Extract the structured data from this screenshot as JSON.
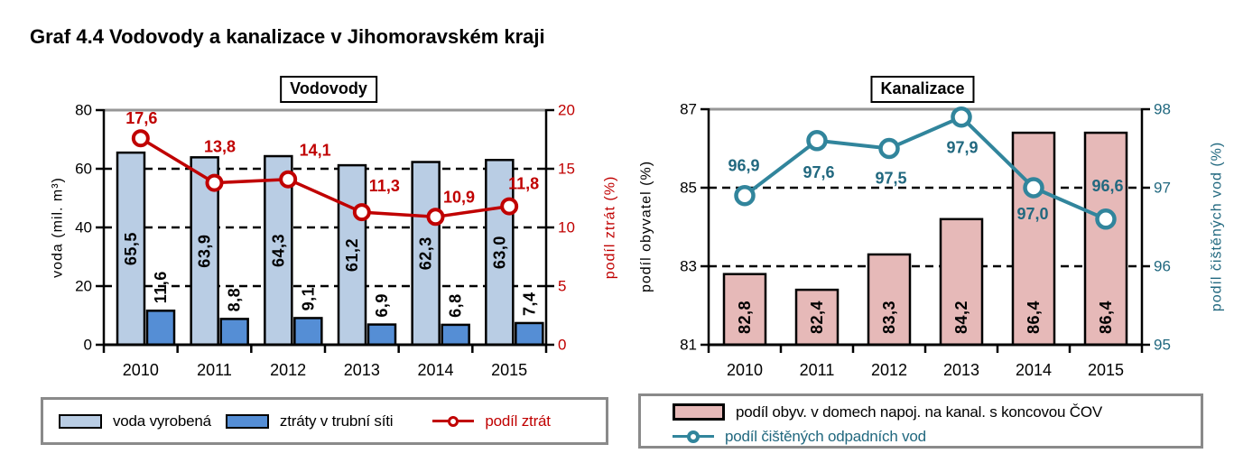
{
  "title": "Graf 4.4 Vodovody a kanalizace v Jihomoravském kraji",
  "colors": {
    "red": "#C00000",
    "light_blue": "#B9CDE4",
    "dark_blue": "#558ED5",
    "pink": "#E6B9B8",
    "teal_line": "#31859C",
    "teal_text": "#21687F",
    "grid_gray": "#969696",
    "axis_black": "#000000",
    "legend_border": "#8A8A8A"
  },
  "chart_data": [
    {
      "id": "vodovody",
      "type": "bar",
      "title": "Vodovody",
      "categories": [
        "2010",
        "2011",
        "2012",
        "2013",
        "2014",
        "2015"
      ],
      "series": [
        {
          "name": "voda vyrobená",
          "kind": "bar",
          "axis": "left",
          "color": "#B9CDE4",
          "values": [
            65.5,
            63.9,
            64.3,
            61.2,
            62.3,
            63.0
          ],
          "value_labels": [
            "65,5",
            "63,9",
            "64,3",
            "61,2",
            "62,3",
            "63,0"
          ]
        },
        {
          "name": "ztráty v trubní síti",
          "kind": "bar",
          "axis": "left",
          "color": "#558ED5",
          "values": [
            11.6,
            8.8,
            9.1,
            6.9,
            6.8,
            7.4
          ],
          "value_labels": [
            "11,6",
            "8,8",
            "9,1",
            "6,9",
            "6,8",
            "7,4"
          ]
        },
        {
          "name": "podíl ztrát",
          "kind": "line",
          "axis": "right",
          "color": "#C00000",
          "values": [
            17.6,
            13.8,
            14.1,
            11.3,
            10.9,
            11.8
          ],
          "value_labels": [
            "17,6",
            "13,8",
            "14,1",
            "11,3",
            "10,9",
            "11,8"
          ]
        }
      ],
      "left_axis": {
        "title": "voda (mil. m³)",
        "range": [
          0,
          80
        ],
        "ticks": [
          0,
          20,
          40,
          60,
          80
        ]
      },
      "right_axis": {
        "title": "podíl ztrát (%)",
        "range": [
          0,
          20
        ],
        "ticks": [
          0,
          5,
          10,
          15,
          20
        ]
      },
      "grid": {
        "dashed_horizontal": [
          20,
          40,
          60
        ],
        "solid_gray_top": 80
      },
      "legend_position": "bottom"
    },
    {
      "id": "kanalizace",
      "type": "bar",
      "title": "Kanalizace",
      "categories": [
        "2010",
        "2011",
        "2012",
        "2013",
        "2014",
        "2015"
      ],
      "series": [
        {
          "name": "podíl obyv. v domech napoj. na kanal. s koncovou ČOV",
          "kind": "bar",
          "axis": "left",
          "color": "#E6B9B8",
          "values": [
            82.8,
            82.4,
            83.3,
            84.2,
            86.4,
            86.4
          ],
          "value_labels": [
            "82,8",
            "82,4",
            "83,3",
            "84,2",
            "86,4",
            "86,4"
          ]
        },
        {
          "name": "podíl čištěných odpadních vod",
          "kind": "line",
          "axis": "right",
          "color": "#31859C",
          "values": [
            96.9,
            97.6,
            97.5,
            97.9,
            97.0,
            96.6
          ],
          "value_labels": [
            "96,9",
            "97,6",
            "97,5",
            "97,9",
            "97,0",
            "96,6"
          ]
        }
      ],
      "left_axis": {
        "title": "podíl obyvatel (%)",
        "range": [
          81,
          87
        ],
        "ticks": [
          81,
          83,
          85,
          87
        ]
      },
      "right_axis": {
        "title": "podíl čištěných vod (%)",
        "range": [
          95,
          98
        ],
        "ticks": [
          95,
          96,
          97,
          98
        ]
      },
      "grid": {
        "dashed_horizontal": [
          83,
          85
        ],
        "solid_gray_top": 87
      },
      "legend_position": "bottom"
    }
  ]
}
